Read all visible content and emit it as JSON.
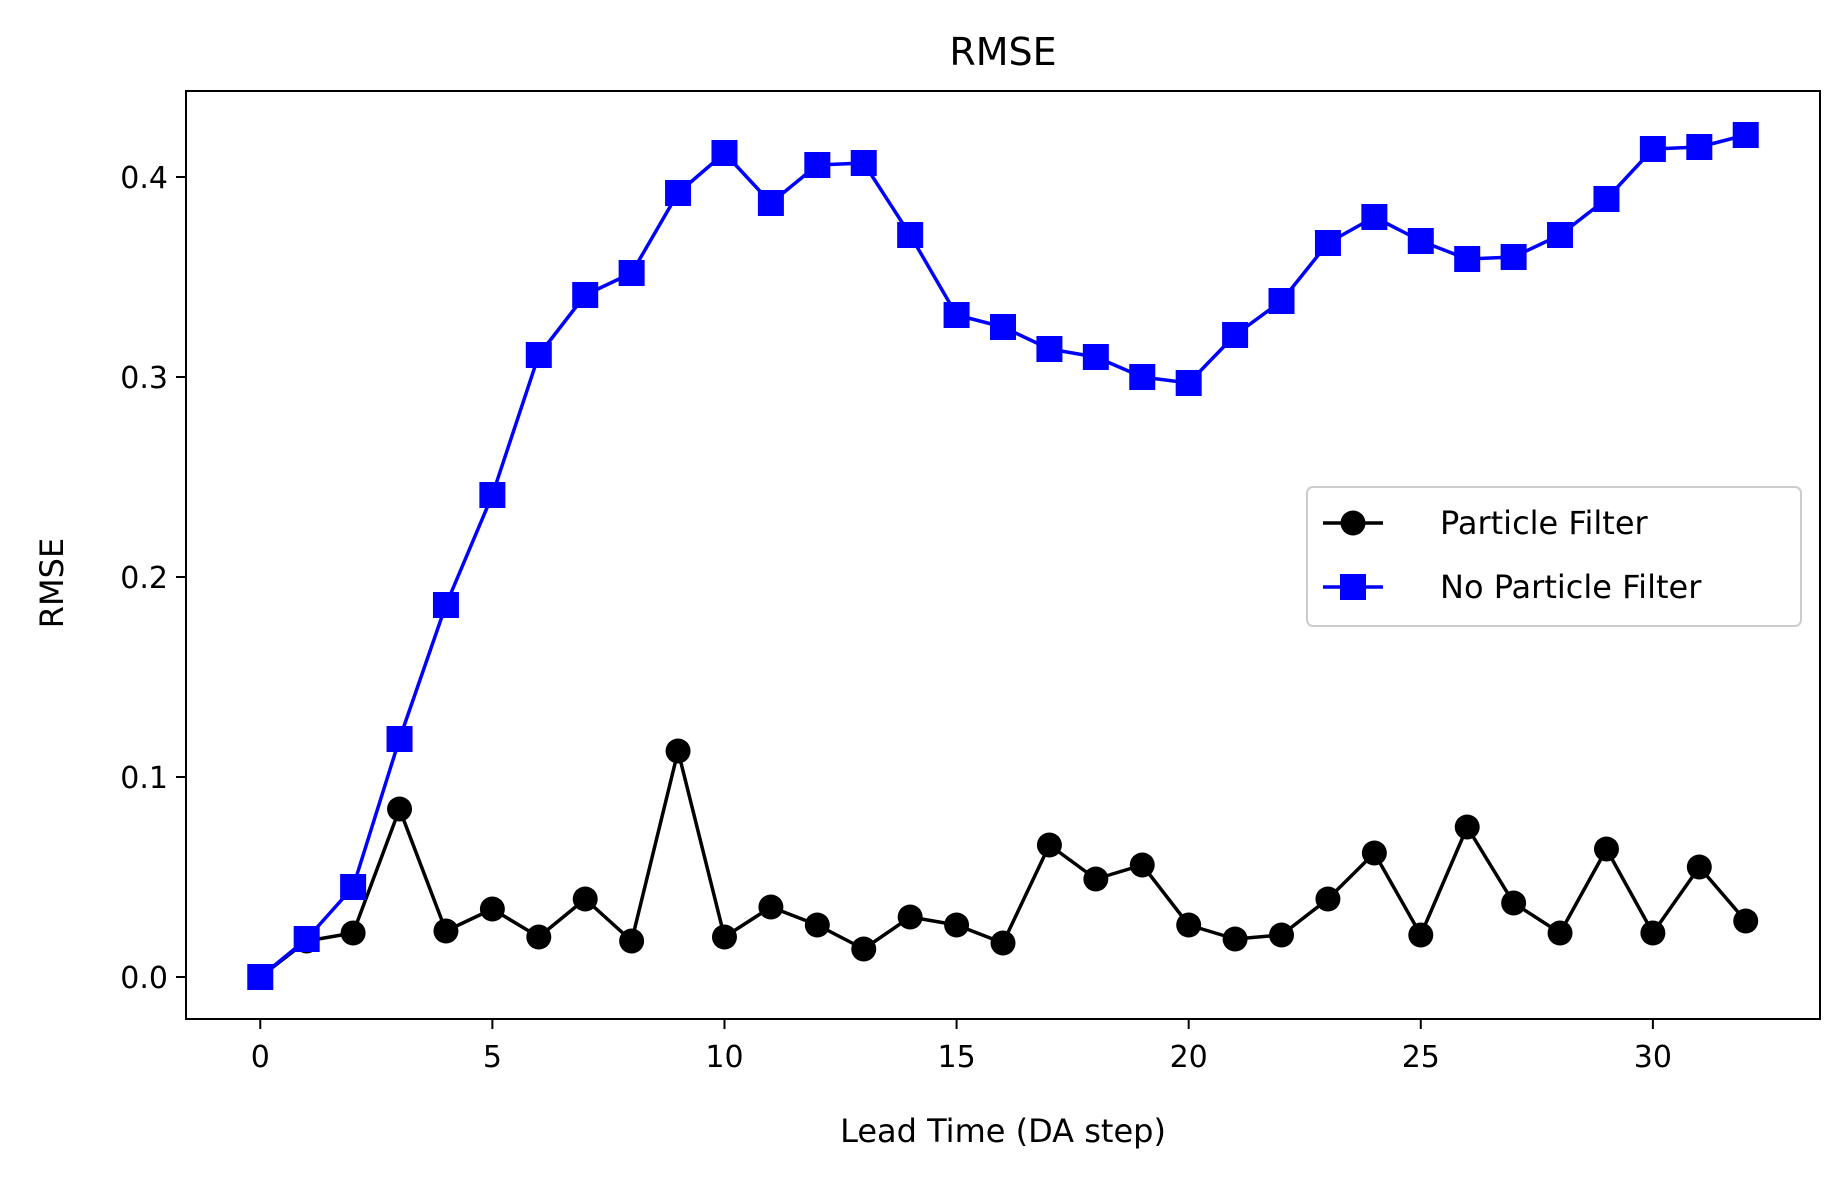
{
  "chart_data": {
    "type": "line",
    "title": "RMSE",
    "xlabel": "Lead Time (DA step)",
    "ylabel": "RMSE",
    "xlim": [
      -1.6,
      33.6
    ],
    "ylim": [
      -0.021,
      0.443
    ],
    "xticks": [
      0,
      5,
      10,
      15,
      20,
      25,
      30
    ],
    "yticks": [
      0.0,
      0.1,
      0.2,
      0.3,
      0.4
    ],
    "ytick_labels": [
      "0.0",
      "0.1",
      "0.2",
      "0.3",
      "0.4"
    ],
    "grid": false,
    "legend_position": "center-right",
    "x": [
      0,
      1,
      2,
      3,
      4,
      5,
      6,
      7,
      8,
      9,
      10,
      11,
      12,
      13,
      14,
      15,
      16,
      17,
      18,
      19,
      20,
      21,
      22,
      23,
      24,
      25,
      26,
      27,
      28,
      29,
      30,
      31,
      32
    ],
    "series": [
      {
        "name": "Particle Filter",
        "color": "#000000",
        "marker": "circle",
        "values": [
          0.0,
          0.018,
          0.022,
          0.084,
          0.023,
          0.034,
          0.02,
          0.039,
          0.018,
          0.113,
          0.02,
          0.035,
          0.026,
          0.014,
          0.03,
          0.026,
          0.017,
          0.066,
          0.049,
          0.056,
          0.026,
          0.019,
          0.021,
          0.039,
          0.062,
          0.021,
          0.075,
          0.037,
          0.022,
          0.064,
          0.022,
          0.055,
          0.028
        ]
      },
      {
        "name": "No Particle Filter",
        "color": "#0000ff",
        "marker": "square",
        "values": [
          0.0,
          0.019,
          0.045,
          0.119,
          0.186,
          0.241,
          0.311,
          0.341,
          0.352,
          0.392,
          0.412,
          0.387,
          0.406,
          0.407,
          0.371,
          0.331,
          0.325,
          0.314,
          0.31,
          0.3,
          0.297,
          0.321,
          0.338,
          0.367,
          0.38,
          0.368,
          0.359,
          0.36,
          0.371,
          0.389,
          0.414,
          0.415,
          0.421
        ]
      }
    ]
  }
}
